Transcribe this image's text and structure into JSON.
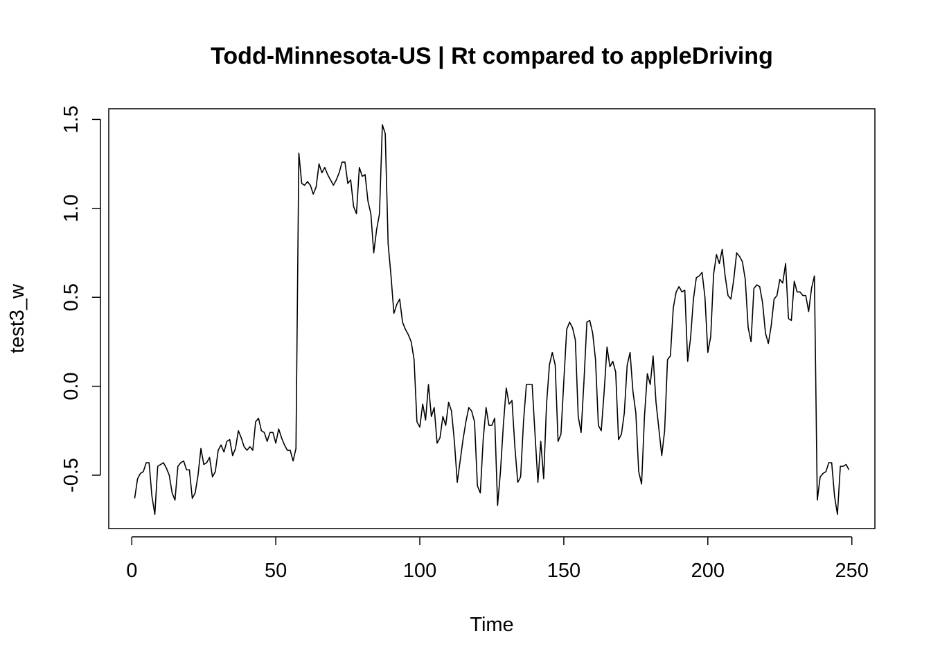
{
  "chart_data": {
    "type": "line",
    "title": "Todd-Minnesota-US | Rt compared to appleDriving",
    "xlabel": "Time",
    "ylabel": "test3_w",
    "xlim": [
      -8,
      258
    ],
    "ylim": [
      -0.8,
      1.56
    ],
    "x_ticks": [
      0,
      50,
      100,
      150,
      200,
      250
    ],
    "x_tick_labels": [
      "0",
      "50",
      "100",
      "150",
      "200",
      "250"
    ],
    "y_ticks": [
      -0.5,
      0.0,
      0.5,
      1.0,
      1.5
    ],
    "y_tick_labels": [
      "-0.5",
      "0.0",
      "0.5",
      "1.0",
      "1.5"
    ],
    "grid": false,
    "line_color": "#000000",
    "x_start": 1,
    "series": [
      {
        "values": [
          -0.63,
          -0.52,
          -0.49,
          -0.48,
          -0.43,
          -0.43,
          -0.62,
          -0.72,
          -0.45,
          -0.44,
          -0.43,
          -0.46,
          -0.5,
          -0.6,
          -0.64,
          -0.45,
          -0.43,
          -0.42,
          -0.47,
          -0.47,
          -0.63,
          -0.6,
          -0.5,
          -0.35,
          -0.44,
          -0.43,
          -0.4,
          -0.51,
          -0.48,
          -0.36,
          -0.33,
          -0.37,
          -0.31,
          -0.3,
          -0.39,
          -0.35,
          -0.25,
          -0.29,
          -0.34,
          -0.36,
          -0.34,
          -0.36,
          -0.2,
          -0.18,
          -0.25,
          -0.26,
          -0.31,
          -0.26,
          -0.26,
          -0.32,
          -0.24,
          -0.29,
          -0.33,
          -0.36,
          -0.36,
          -0.42,
          -0.35,
          1.31,
          1.14,
          1.13,
          1.15,
          1.13,
          1.08,
          1.12,
          1.25,
          1.2,
          1.23,
          1.19,
          1.16,
          1.13,
          1.16,
          1.2,
          1.26,
          1.26,
          1.14,
          1.16,
          1.01,
          0.97,
          1.23,
          1.18,
          1.19,
          1.04,
          0.97,
          0.75,
          0.88,
          0.97,
          1.47,
          1.42,
          0.8,
          0.62,
          0.41,
          0.46,
          0.49,
          0.36,
          0.32,
          0.29,
          0.25,
          0.15,
          -0.2,
          -0.23,
          -0.1,
          -0.19,
          0.01,
          -0.17,
          -0.12,
          -0.32,
          -0.29,
          -0.17,
          -0.22,
          -0.09,
          -0.14,
          -0.31,
          -0.54,
          -0.42,
          -0.3,
          -0.2,
          -0.12,
          -0.14,
          -0.2,
          -0.56,
          -0.6,
          -0.3,
          -0.12,
          -0.22,
          -0.22,
          -0.18,
          -0.67,
          -0.48,
          -0.22,
          -0.01,
          -0.1,
          -0.08,
          -0.34,
          -0.54,
          -0.51,
          -0.2,
          0.01,
          0.01,
          0.01,
          -0.27,
          -0.54,
          -0.31,
          -0.52,
          -0.1,
          0.12,
          0.19,
          0.12,
          -0.31,
          -0.27,
          0.03,
          0.32,
          0.36,
          0.33,
          0.26,
          -0.17,
          -0.26,
          0.03,
          0.36,
          0.37,
          0.3,
          0.15,
          -0.22,
          -0.25,
          -0.03,
          0.22,
          0.11,
          0.14,
          0.08,
          -0.3,
          -0.27,
          -0.15,
          0.12,
          0.19,
          -0.03,
          -0.15,
          -0.48,
          -0.55,
          -0.17,
          0.07,
          0.01,
          0.17,
          -0.09,
          -0.24,
          -0.39,
          -0.25,
          0.15,
          0.17,
          0.44,
          0.53,
          0.56,
          0.53,
          0.54,
          0.14,
          0.27,
          0.49,
          0.61,
          0.62,
          0.64,
          0.5,
          0.19,
          0.28,
          0.63,
          0.74,
          0.69,
          0.77,
          0.62,
          0.51,
          0.49,
          0.6,
          0.75,
          0.73,
          0.7,
          0.6,
          0.33,
          0.25,
          0.55,
          0.57,
          0.56,
          0.47,
          0.3,
          0.24,
          0.34,
          0.49,
          0.51,
          0.6,
          0.58,
          0.69,
          0.38,
          0.37,
          0.59,
          0.53,
          0.53,
          0.51,
          0.51,
          0.42,
          0.55,
          0.62,
          -0.64,
          -0.51,
          -0.49,
          -0.48,
          -0.43,
          -0.43,
          -0.62,
          -0.72,
          -0.45,
          -0.45,
          -0.44,
          -0.47
        ]
      }
    ]
  }
}
